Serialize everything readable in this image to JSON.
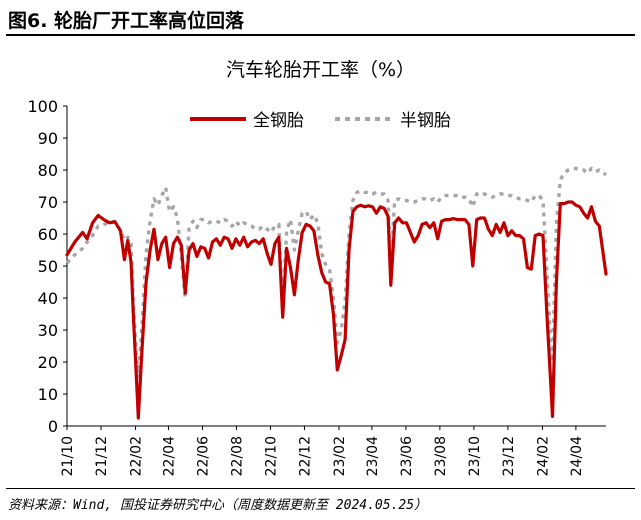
{
  "figure": {
    "title": "图6. 轮胎厂开工率高位回落",
    "source": "资料来源：Wind, 国投证券研究中心（周度数据更新至 2024.05.25）"
  },
  "chart_data": {
    "type": "line",
    "title": "汽车轮胎开工率（%）",
    "xlabel": "",
    "ylabel": "",
    "ylim": [
      0,
      100
    ],
    "yticks": [
      0,
      10,
      20,
      30,
      40,
      50,
      60,
      70,
      80,
      90,
      100
    ],
    "xlim": [
      "2021-10-01",
      "2024-05-25"
    ],
    "xticks": [
      "21/10",
      "21/12",
      "22/02",
      "22/04",
      "22/06",
      "22/08",
      "22/10",
      "22/12",
      "23/02",
      "23/04",
      "23/06",
      "23/08",
      "23/10",
      "23/12",
      "24/02",
      "24/04"
    ],
    "grid": false,
    "legend_position": "top",
    "series": [
      {
        "name": "全钢胎",
        "color": "#C00000",
        "style": "solid",
        "points": [
          [
            "2021-10-01",
            53.5
          ],
          [
            "2021-10-15",
            57.5
          ],
          [
            "2021-10-29",
            60.5
          ],
          [
            "2021-11-06",
            58.5
          ],
          [
            "2021-11-16",
            63.5
          ],
          [
            "2021-11-26",
            65.8
          ],
          [
            "2021-12-06",
            64.5
          ],
          [
            "2021-12-16",
            63.5
          ],
          [
            "2021-12-26",
            63.8
          ],
          [
            "2022-01-05",
            61.0
          ],
          [
            "2022-01-12",
            52.0
          ],
          [
            "2022-01-18",
            58.0
          ],
          [
            "2022-01-24",
            51.0
          ],
          [
            "2022-01-28",
            35.0
          ],
          [
            "2022-02-04",
            10.0
          ],
          [
            "2022-02-06",
            2.5
          ],
          [
            "2022-02-13",
            25.0
          ],
          [
            "2022-02-20",
            45.0
          ],
          [
            "2022-02-27",
            55.0
          ],
          [
            "2022-03-06",
            61.5
          ],
          [
            "2022-03-13",
            52.0
          ],
          [
            "2022-03-20",
            57.0
          ],
          [
            "2022-03-27",
            59.0
          ],
          [
            "2022-04-03",
            49.5
          ],
          [
            "2022-04-10",
            57.0
          ],
          [
            "2022-04-17",
            59.0
          ],
          [
            "2022-04-24",
            56.5
          ],
          [
            "2022-05-01",
            41.5
          ],
          [
            "2022-05-08",
            55.0
          ],
          [
            "2022-05-15",
            57.0
          ],
          [
            "2022-05-22",
            53.0
          ],
          [
            "2022-05-29",
            56.0
          ],
          [
            "2022-06-05",
            55.5
          ],
          [
            "2022-06-12",
            52.5
          ],
          [
            "2022-06-19",
            57.5
          ],
          [
            "2022-06-26",
            58.5
          ],
          [
            "2022-07-03",
            56.5
          ],
          [
            "2022-07-10",
            59.0
          ],
          [
            "2022-07-17",
            58.5
          ],
          [
            "2022-07-24",
            55.5
          ],
          [
            "2022-07-31",
            58.5
          ],
          [
            "2022-08-07",
            56.5
          ],
          [
            "2022-08-14",
            59.0
          ],
          [
            "2022-08-21",
            56.0
          ],
          [
            "2022-08-28",
            57.5
          ],
          [
            "2022-09-04",
            58.0
          ],
          [
            "2022-09-11",
            57.0
          ],
          [
            "2022-09-18",
            58.5
          ],
          [
            "2022-09-25",
            54.0
          ],
          [
            "2022-10-02",
            50.5
          ],
          [
            "2022-10-09",
            57.0
          ],
          [
            "2022-10-16",
            59.0
          ],
          [
            "2022-10-23",
            34.0
          ],
          [
            "2022-10-30",
            55.5
          ],
          [
            "2022-11-06",
            49.5
          ],
          [
            "2022-11-13",
            41.0
          ],
          [
            "2022-11-20",
            52.0
          ],
          [
            "2022-11-27",
            60.5
          ],
          [
            "2022-12-04",
            63.0
          ],
          [
            "2022-12-11",
            62.5
          ],
          [
            "2022-12-18",
            61.0
          ],
          [
            "2022-12-25",
            53.5
          ],
          [
            "2023-01-01",
            48.0
          ],
          [
            "2023-01-08",
            45.0
          ],
          [
            "2023-01-15",
            44.5
          ],
          [
            "2023-01-22",
            35.0
          ],
          [
            "2023-01-29",
            17.5
          ],
          [
            "2023-02-05",
            22.0
          ],
          [
            "2023-02-12",
            27.0
          ],
          [
            "2023-02-19",
            55.0
          ],
          [
            "2023-02-26",
            67.0
          ],
          [
            "2023-03-05",
            68.5
          ],
          [
            "2023-03-12",
            69.0
          ],
          [
            "2023-03-19",
            68.5
          ],
          [
            "2023-03-26",
            68.8
          ],
          [
            "2023-04-02",
            68.5
          ],
          [
            "2023-04-09",
            66.5
          ],
          [
            "2023-04-16",
            68.5
          ],
          [
            "2023-04-23",
            68.0
          ],
          [
            "2023-04-30",
            65.5
          ],
          [
            "2023-05-05",
            44.0
          ],
          [
            "2023-05-12",
            63.5
          ],
          [
            "2023-05-19",
            65.0
          ],
          [
            "2023-05-26",
            63.5
          ],
          [
            "2023-06-02",
            63.5
          ],
          [
            "2023-06-09",
            60.5
          ],
          [
            "2023-06-16",
            57.5
          ],
          [
            "2023-06-23",
            59.5
          ],
          [
            "2023-06-30",
            63.0
          ],
          [
            "2023-07-07",
            63.5
          ],
          [
            "2023-07-14",
            62.0
          ],
          [
            "2023-07-21",
            63.5
          ],
          [
            "2023-07-28",
            58.5
          ],
          [
            "2023-08-04",
            64.0
          ],
          [
            "2023-08-11",
            64.5
          ],
          [
            "2023-08-18",
            64.5
          ],
          [
            "2023-08-25",
            64.8
          ],
          [
            "2023-09-01",
            64.5
          ],
          [
            "2023-09-08",
            64.5
          ],
          [
            "2023-09-15",
            64.5
          ],
          [
            "2023-09-22",
            63.0
          ],
          [
            "2023-09-29",
            50.0
          ],
          [
            "2023-10-06",
            64.5
          ],
          [
            "2023-10-13",
            65.0
          ],
          [
            "2023-10-20",
            65.0
          ],
          [
            "2023-10-27",
            61.5
          ],
          [
            "2023-11-03",
            59.5
          ],
          [
            "2023-11-10",
            63.0
          ],
          [
            "2023-11-17",
            60.5
          ],
          [
            "2023-11-24",
            63.5
          ],
          [
            "2023-12-01",
            59.5
          ],
          [
            "2023-12-08",
            61.0
          ],
          [
            "2023-12-15",
            59.5
          ],
          [
            "2023-12-22",
            59.5
          ],
          [
            "2023-12-29",
            58.5
          ],
          [
            "2024-01-05",
            49.5
          ],
          [
            "2024-01-12",
            49.0
          ],
          [
            "2024-01-19",
            59.5
          ],
          [
            "2024-01-26",
            60.0
          ],
          [
            "2024-02-02",
            59.5
          ],
          [
            "2024-02-09",
            35.0
          ],
          [
            "2024-02-16",
            13.0
          ],
          [
            "2024-02-19",
            3.0
          ],
          [
            "2024-02-26",
            45.0
          ],
          [
            "2024-03-04",
            69.5
          ],
          [
            "2024-03-11",
            69.5
          ],
          [
            "2024-03-18",
            70.0
          ],
          [
            "2024-03-25",
            70.0
          ],
          [
            "2024-04-01",
            69.0
          ],
          [
            "2024-04-08",
            68.5
          ],
          [
            "2024-04-15",
            66.5
          ],
          [
            "2024-04-22",
            65.0
          ],
          [
            "2024-04-29",
            68.5
          ],
          [
            "2024-05-06",
            64.0
          ],
          [
            "2024-05-13",
            62.5
          ],
          [
            "2024-05-25",
            47.5
          ]
        ]
      },
      {
        "name": "半钢胎",
        "color": "#A6A6A6",
        "style": "dashed",
        "points": [
          [
            "2021-10-01",
            51.0
          ],
          [
            "2021-10-15",
            53.5
          ],
          [
            "2021-10-29",
            55.5
          ],
          [
            "2021-11-06",
            57.5
          ],
          [
            "2021-11-16",
            59.5
          ],
          [
            "2021-11-26",
            62.5
          ],
          [
            "2021-12-06",
            63.0
          ],
          [
            "2021-12-16",
            63.5
          ],
          [
            "2021-12-26",
            64.0
          ],
          [
            "2022-01-05",
            61.0
          ],
          [
            "2022-01-12",
            58.0
          ],
          [
            "2022-01-18",
            59.0
          ],
          [
            "2022-01-24",
            57.0
          ],
          [
            "2022-01-28",
            38.0
          ],
          [
            "2022-02-04",
            19.0
          ],
          [
            "2022-02-06",
            15.0
          ],
          [
            "2022-02-13",
            32.0
          ],
          [
            "2022-02-20",
            54.0
          ],
          [
            "2022-02-27",
            64.0
          ],
          [
            "2022-03-06",
            71.0
          ],
          [
            "2022-03-13",
            69.0
          ],
          [
            "2022-03-20",
            72.0
          ],
          [
            "2022-03-27",
            74.5
          ],
          [
            "2022-04-03",
            67.0
          ],
          [
            "2022-04-10",
            68.5
          ],
          [
            "2022-04-17",
            65.0
          ],
          [
            "2022-04-24",
            53.0
          ],
          [
            "2022-05-01",
            40.0
          ],
          [
            "2022-05-08",
            62.0
          ],
          [
            "2022-05-15",
            64.0
          ],
          [
            "2022-05-22",
            62.0
          ],
          [
            "2022-05-29",
            64.5
          ],
          [
            "2022-06-05",
            64.5
          ],
          [
            "2022-06-12",
            63.5
          ],
          [
            "2022-06-19",
            64.0
          ],
          [
            "2022-06-26",
            64.0
          ],
          [
            "2022-07-03",
            63.5
          ],
          [
            "2022-07-10",
            64.5
          ],
          [
            "2022-07-17",
            64.0
          ],
          [
            "2022-07-24",
            62.5
          ],
          [
            "2022-07-31",
            64.0
          ],
          [
            "2022-08-07",
            62.5
          ],
          [
            "2022-08-14",
            63.5
          ],
          [
            "2022-08-21",
            63.0
          ],
          [
            "2022-08-28",
            62.5
          ],
          [
            "2022-09-04",
            61.5
          ],
          [
            "2022-09-11",
            61.5
          ],
          [
            "2022-09-18",
            62.5
          ],
          [
            "2022-09-25",
            61.5
          ],
          [
            "2022-10-02",
            60.5
          ],
          [
            "2022-10-09",
            62.5
          ],
          [
            "2022-10-16",
            63.0
          ],
          [
            "2022-10-23",
            36.0
          ],
          [
            "2022-10-30",
            61.0
          ],
          [
            "2022-11-06",
            64.5
          ],
          [
            "2022-11-13",
            55.0
          ],
          [
            "2022-11-20",
            61.0
          ],
          [
            "2022-11-27",
            66.5
          ],
          [
            "2022-12-04",
            67.0
          ],
          [
            "2022-12-11",
            64.5
          ],
          [
            "2022-12-18",
            66.0
          ],
          [
            "2022-12-25",
            63.5
          ],
          [
            "2023-01-01",
            54.0
          ],
          [
            "2023-01-08",
            50.5
          ],
          [
            "2023-01-15",
            49.0
          ],
          [
            "2023-01-22",
            40.0
          ],
          [
            "2023-01-29",
            26.0
          ],
          [
            "2023-02-05",
            30.0
          ],
          [
            "2023-02-12",
            39.0
          ],
          [
            "2023-02-19",
            60.0
          ],
          [
            "2023-02-26",
            70.5
          ],
          [
            "2023-03-05",
            73.0
          ],
          [
            "2023-03-12",
            73.5
          ],
          [
            "2023-03-19",
            73.0
          ],
          [
            "2023-03-26",
            73.0
          ],
          [
            "2023-04-02",
            72.5
          ],
          [
            "2023-04-09",
            73.0
          ],
          [
            "2023-04-16",
            72.5
          ],
          [
            "2023-04-23",
            72.5
          ],
          [
            "2023-04-30",
            70.5
          ],
          [
            "2023-05-05",
            50.0
          ],
          [
            "2023-05-12",
            70.5
          ],
          [
            "2023-05-19",
            71.0
          ],
          [
            "2023-05-26",
            70.5
          ],
          [
            "2023-06-02",
            70.5
          ],
          [
            "2023-06-09",
            70.0
          ],
          [
            "2023-06-16",
            70.0
          ],
          [
            "2023-06-23",
            70.5
          ],
          [
            "2023-06-30",
            71.0
          ],
          [
            "2023-07-07",
            71.0
          ],
          [
            "2023-07-14",
            70.5
          ],
          [
            "2023-07-21",
            71.0
          ],
          [
            "2023-07-28",
            70.0
          ],
          [
            "2023-08-04",
            71.5
          ],
          [
            "2023-08-11",
            72.0
          ],
          [
            "2023-08-18",
            72.0
          ],
          [
            "2023-08-25",
            72.0
          ],
          [
            "2023-09-01",
            72.0
          ],
          [
            "2023-09-08",
            71.5
          ],
          [
            "2023-09-15",
            71.5
          ],
          [
            "2023-09-22",
            71.0
          ],
          [
            "2023-09-29",
            68.5
          ],
          [
            "2023-10-06",
            72.5
          ],
          [
            "2023-10-13",
            73.0
          ],
          [
            "2023-10-20",
            72.5
          ],
          [
            "2023-10-27",
            72.0
          ],
          [
            "2023-11-03",
            71.5
          ],
          [
            "2023-11-10",
            72.0
          ],
          [
            "2023-11-17",
            72.5
          ],
          [
            "2023-11-24",
            72.5
          ],
          [
            "2023-12-01",
            72.0
          ],
          [
            "2023-12-08",
            72.0
          ],
          [
            "2023-12-15",
            71.5
          ],
          [
            "2023-12-22",
            71.0
          ],
          [
            "2023-12-29",
            71.0
          ],
          [
            "2024-01-05",
            70.5
          ],
          [
            "2024-01-12",
            70.0
          ],
          [
            "2024-01-19",
            72.0
          ],
          [
            "2024-01-26",
            72.0
          ],
          [
            "2024-02-02",
            70.5
          ],
          [
            "2024-02-09",
            48.0
          ],
          [
            "2024-02-16",
            25.0
          ],
          [
            "2024-02-19",
            20.0
          ],
          [
            "2024-02-26",
            63.0
          ],
          [
            "2024-03-04",
            77.0
          ],
          [
            "2024-03-11",
            79.0
          ],
          [
            "2024-03-18",
            80.0
          ],
          [
            "2024-03-25",
            80.5
          ],
          [
            "2024-04-01",
            80.5
          ],
          [
            "2024-04-08",
            80.0
          ],
          [
            "2024-04-15",
            80.0
          ],
          [
            "2024-04-22",
            79.0
          ],
          [
            "2024-04-29",
            80.5
          ],
          [
            "2024-05-06",
            79.5
          ],
          [
            "2024-05-13",
            80.0
          ],
          [
            "2024-05-25",
            78.5
          ]
        ]
      }
    ]
  }
}
